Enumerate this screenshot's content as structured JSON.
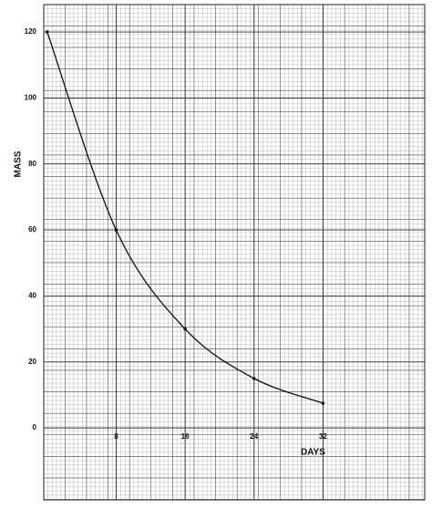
{
  "chart_data": {
    "type": "line",
    "x_label": "DAYS",
    "y_label": "MASS",
    "x": [
      0,
      8,
      16,
      24,
      32
    ],
    "series": [
      {
        "name": "mass",
        "color": "#111111",
        "values": [
          120,
          60,
          30,
          15,
          7.5
        ]
      }
    ],
    "xlim": [
      -0.4,
      43.8
    ],
    "ylim": [
      -21.8,
      128.3
    ],
    "xticks": [
      8,
      16,
      24,
      32
    ],
    "yticks": [
      0,
      20,
      40,
      60,
      80,
      100,
      120
    ],
    "grid": true
  }
}
